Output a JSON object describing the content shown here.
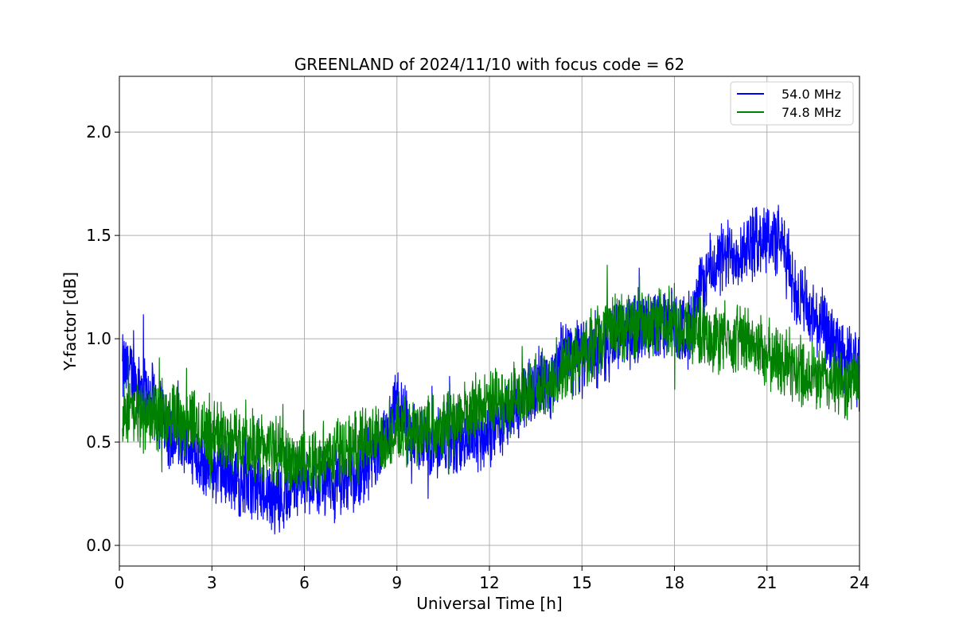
{
  "chart_data": {
    "type": "line",
    "title": "GREENLAND of 2024/11/10 with focus code = 62",
    "xlabel": "Universal Time [h]",
    "ylabel": "Y-factor [dB]",
    "xlim": [
      0,
      24
    ],
    "ylim": [
      -0.1,
      2.27
    ],
    "xticks": [
      0,
      3,
      6,
      9,
      12,
      15,
      18,
      21,
      24
    ],
    "xtick_labels": [
      "0",
      "3",
      "6",
      "9",
      "12",
      "15",
      "18",
      "21",
      "24"
    ],
    "yticks": [
      0.0,
      0.5,
      1.0,
      1.5,
      2.0
    ],
    "ytick_labels": [
      "0.0",
      "0.5",
      "1.0",
      "1.5",
      "2.0"
    ],
    "grid": true,
    "legend_position": "top-right",
    "x": [
      0.1,
      0.5,
      1.0,
      1.5,
      1.7,
      2.0,
      2.5,
      3.0,
      3.5,
      4.0,
      4.5,
      4.9,
      5.3,
      5.6,
      6.0,
      6.5,
      7.0,
      7.5,
      8.0,
      8.5,
      9.0,
      9.5,
      10.0,
      10.5,
      11.0,
      11.5,
      12.0,
      12.5,
      13.0,
      13.5,
      14.0,
      14.5,
      15.0,
      15.5,
      16.0,
      16.5,
      17.0,
      17.5,
      18.0,
      18.5,
      19.0,
      19.5,
      20.0,
      20.5,
      21.0,
      21.5,
      22.0,
      22.5,
      23.0,
      23.5,
      24.0
    ],
    "series": [
      {
        "name": "54.0 MHz",
        "color": "#0000ff",
        "values": [
          0.85,
          0.82,
          0.72,
          0.6,
          0.53,
          0.52,
          0.45,
          0.38,
          0.35,
          0.3,
          0.28,
          0.25,
          0.24,
          0.27,
          0.32,
          0.3,
          0.3,
          0.33,
          0.4,
          0.5,
          0.7,
          0.52,
          0.5,
          0.5,
          0.5,
          0.52,
          0.55,
          0.62,
          0.7,
          0.77,
          0.8,
          0.95,
          0.9,
          0.95,
          1.0,
          1.05,
          1.05,
          1.06,
          1.05,
          1.05,
          1.3,
          1.38,
          1.42,
          1.45,
          1.5,
          1.45,
          1.2,
          1.1,
          1.0,
          0.9,
          0.85
        ]
      },
      {
        "name": "74.8 MHz",
        "color": "#008000",
        "values": [
          0.65,
          0.63,
          0.63,
          0.62,
          0.63,
          0.6,
          0.58,
          0.55,
          0.52,
          0.5,
          0.48,
          0.47,
          0.45,
          0.4,
          0.4,
          0.42,
          0.45,
          0.48,
          0.5,
          0.52,
          0.55,
          0.55,
          0.58,
          0.6,
          0.62,
          0.65,
          0.67,
          0.7,
          0.72,
          0.75,
          0.8,
          0.85,
          0.92,
          1.0,
          1.05,
          1.08,
          1.08,
          1.08,
          1.08,
          1.05,
          1.02,
          1.0,
          1.0,
          0.98,
          0.92,
          0.88,
          0.85,
          0.82,
          0.8,
          0.78,
          0.8
        ]
      }
    ],
    "legend": [
      {
        "label": "54.0 MHz",
        "color": "#0000ff"
      },
      {
        "label": "74.8 MHz",
        "color": "#008000"
      }
    ]
  }
}
